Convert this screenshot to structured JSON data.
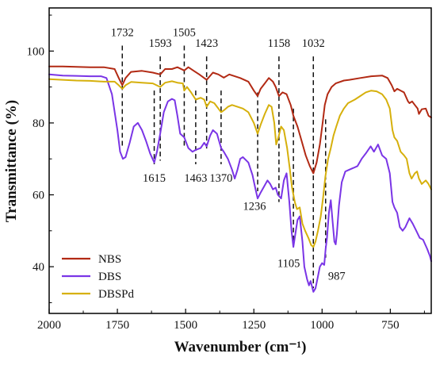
{
  "chart_data": {
    "type": "line",
    "title": "",
    "xlabel": "Wavenumber (cm⁻¹)",
    "ylabel": "Transmittance (%)",
    "xlim": [
      2000,
      600
    ],
    "ylim": [
      27,
      112
    ],
    "x_reversed": true,
    "x_ticks": [
      2000,
      1750,
      1500,
      1250,
      1000,
      750
    ],
    "x_tick_labels": [
      "2000",
      "1750",
      "1500",
      "1250",
      "1000",
      "750"
    ],
    "y_ticks": [
      40,
      60,
      80,
      100
    ],
    "y_tick_labels": [
      "40",
      "60",
      "80",
      "100"
    ],
    "legend": {
      "position": "bottom-left"
    },
    "colors": {
      "NBS": "#b22a14",
      "DBS": "#7a35e6",
      "DBSPd": "#d6b00c"
    },
    "series": [
      {
        "name": "NBS",
        "color": "#b22a14",
        "points": [
          [
            2000,
            95.7
          ],
          [
            1950,
            95.7
          ],
          [
            1900,
            95.6
          ],
          [
            1850,
            95.5
          ],
          [
            1800,
            95.5
          ],
          [
            1760,
            95
          ],
          [
            1745,
            92.5
          ],
          [
            1732,
            90.5
          ],
          [
            1720,
            92.5
          ],
          [
            1700,
            94.2
          ],
          [
            1660,
            94.5
          ],
          [
            1620,
            94
          ],
          [
            1593,
            93.5
          ],
          [
            1575,
            95
          ],
          [
            1550,
            95
          ],
          [
            1530,
            95.5
          ],
          [
            1505,
            94.6
          ],
          [
            1490,
            95.5
          ],
          [
            1470,
            94.5
          ],
          [
            1450,
            93.5
          ],
          [
            1423,
            92
          ],
          [
            1400,
            94
          ],
          [
            1380,
            93.5
          ],
          [
            1360,
            92.6
          ],
          [
            1340,
            93.5
          ],
          [
            1300,
            92.5
          ],
          [
            1270,
            91.5
          ],
          [
            1250,
            89
          ],
          [
            1236,
            87.5
          ],
          [
            1225,
            89.5
          ],
          [
            1210,
            91
          ],
          [
            1195,
            92.5
          ],
          [
            1180,
            91.5
          ],
          [
            1170,
            90
          ],
          [
            1158,
            87.5
          ],
          [
            1145,
            88.5
          ],
          [
            1130,
            88
          ],
          [
            1115,
            85
          ],
          [
            1105,
            82
          ],
          [
            1090,
            79
          ],
          [
            1075,
            75
          ],
          [
            1060,
            71
          ],
          [
            1045,
            68
          ],
          [
            1032,
            66
          ],
          [
            1020,
            69
          ],
          [
            1008,
            74
          ],
          [
            998,
            80
          ],
          [
            990,
            85
          ],
          [
            980,
            88
          ],
          [
            965,
            90
          ],
          [
            950,
            91
          ],
          [
            920,
            91.8
          ],
          [
            900,
            92
          ],
          [
            860,
            92.5
          ],
          [
            820,
            93
          ],
          [
            780,
            93.2
          ],
          [
            760,
            92.5
          ],
          [
            745,
            90.5
          ],
          [
            735,
            88.8
          ],
          [
            725,
            89.5
          ],
          [
            700,
            88.5
          ],
          [
            685,
            86
          ],
          [
            680,
            85.5
          ],
          [
            670,
            86
          ],
          [
            660,
            85
          ],
          [
            650,
            84
          ],
          [
            645,
            82.5
          ],
          [
            635,
            83.8
          ],
          [
            620,
            84
          ],
          [
            610,
            82
          ],
          [
            600,
            81.5
          ]
        ]
      },
      {
        "name": "DBS",
        "color": "#7a35e6",
        "points": [
          [
            2000,
            93.5
          ],
          [
            1950,
            93.2
          ],
          [
            1900,
            93.1
          ],
          [
            1850,
            93
          ],
          [
            1810,
            93
          ],
          [
            1790,
            92.5
          ],
          [
            1770,
            88
          ],
          [
            1750,
            78
          ],
          [
            1740,
            72
          ],
          [
            1730,
            70
          ],
          [
            1720,
            70.5
          ],
          [
            1705,
            74.5
          ],
          [
            1690,
            79
          ],
          [
            1675,
            80
          ],
          [
            1660,
            78
          ],
          [
            1645,
            75
          ],
          [
            1630,
            71.5
          ],
          [
            1615,
            69
          ],
          [
            1605,
            72
          ],
          [
            1593,
            77
          ],
          [
            1580,
            83
          ],
          [
            1565,
            86
          ],
          [
            1550,
            86.7
          ],
          [
            1540,
            86.3
          ],
          [
            1530,
            82
          ],
          [
            1520,
            77
          ],
          [
            1505,
            76
          ],
          [
            1490,
            73
          ],
          [
            1475,
            72
          ],
          [
            1463,
            72.5
          ],
          [
            1445,
            73
          ],
          [
            1432,
            74.5
          ],
          [
            1423,
            73.5
          ],
          [
            1410,
            76.5
          ],
          [
            1400,
            78
          ],
          [
            1385,
            77
          ],
          [
            1370,
            73
          ],
          [
            1360,
            72
          ],
          [
            1345,
            70
          ],
          [
            1330,
            67
          ],
          [
            1320,
            64.5
          ],
          [
            1310,
            67
          ],
          [
            1300,
            70
          ],
          [
            1290,
            70.5
          ],
          [
            1270,
            69
          ],
          [
            1255,
            65.5
          ],
          [
            1245,
            62
          ],
          [
            1236,
            59
          ],
          [
            1226,
            60.5
          ],
          [
            1215,
            62
          ],
          [
            1200,
            64
          ],
          [
            1190,
            63
          ],
          [
            1180,
            61.5
          ],
          [
            1170,
            62
          ],
          [
            1162,
            60
          ],
          [
            1150,
            59
          ],
          [
            1140,
            64
          ],
          [
            1130,
            66
          ],
          [
            1120,
            58
          ],
          [
            1112,
            50
          ],
          [
            1105,
            45.5
          ],
          [
            1098,
            49
          ],
          [
            1090,
            53
          ],
          [
            1082,
            54
          ],
          [
            1072,
            47
          ],
          [
            1065,
            40
          ],
          [
            1055,
            36.5
          ],
          [
            1048,
            34.8
          ],
          [
            1042,
            36
          ],
          [
            1032,
            33
          ],
          [
            1024,
            34
          ],
          [
            1016,
            37
          ],
          [
            1008,
            40
          ],
          [
            1000,
            41
          ],
          [
            992,
            40.5
          ],
          [
            987,
            45
          ],
          [
            982,
            48
          ],
          [
            975,
            55
          ],
          [
            968,
            58.5
          ],
          [
            962,
            53
          ],
          [
            955,
            47
          ],
          [
            950,
            46.2
          ],
          [
            946,
            49
          ],
          [
            938,
            57
          ],
          [
            928,
            63.5
          ],
          [
            915,
            66.5
          ],
          [
            900,
            67
          ],
          [
            885,
            67.5
          ],
          [
            870,
            68
          ],
          [
            855,
            70
          ],
          [
            840,
            71.5
          ],
          [
            822,
            73.5
          ],
          [
            810,
            72
          ],
          [
            795,
            74
          ],
          [
            780,
            71
          ],
          [
            765,
            70
          ],
          [
            752,
            66
          ],
          [
            742,
            58
          ],
          [
            735,
            56.5
          ],
          [
            725,
            55
          ],
          [
            715,
            51
          ],
          [
            705,
            50
          ],
          [
            695,
            51
          ],
          [
            680,
            53.5
          ],
          [
            668,
            52
          ],
          [
            655,
            50
          ],
          [
            642,
            48
          ],
          [
            630,
            47.5
          ],
          [
            615,
            45
          ],
          [
            605,
            43
          ],
          [
            600,
            41.5
          ]
        ]
      },
      {
        "name": "DBSPd",
        "color": "#d6b00c",
        "points": [
          [
            2000,
            92.2
          ],
          [
            1950,
            92
          ],
          [
            1900,
            91.8
          ],
          [
            1850,
            91.7
          ],
          [
            1800,
            91.5
          ],
          [
            1760,
            91.5
          ],
          [
            1745,
            90.5
          ],
          [
            1732,
            89.5
          ],
          [
            1720,
            90.5
          ],
          [
            1700,
            91.4
          ],
          [
            1660,
            91.2
          ],
          [
            1620,
            91
          ],
          [
            1593,
            90
          ],
          [
            1575,
            91.2
          ],
          [
            1550,
            91.6
          ],
          [
            1530,
            91.2
          ],
          [
            1510,
            91
          ],
          [
            1505,
            89
          ],
          [
            1495,
            90
          ],
          [
            1480,
            88.5
          ],
          [
            1463,
            86.5
          ],
          [
            1445,
            87
          ],
          [
            1432,
            86.5
          ],
          [
            1423,
            84.5
          ],
          [
            1410,
            86
          ],
          [
            1395,
            85.5
          ],
          [
            1380,
            84
          ],
          [
            1370,
            83
          ],
          [
            1360,
            83.5
          ],
          [
            1345,
            84.5
          ],
          [
            1330,
            85
          ],
          [
            1310,
            84.5
          ],
          [
            1290,
            84
          ],
          [
            1270,
            83
          ],
          [
            1250,
            80
          ],
          [
            1236,
            77
          ],
          [
            1225,
            79.5
          ],
          [
            1210,
            82.5
          ],
          [
            1195,
            85
          ],
          [
            1185,
            84.5
          ],
          [
            1175,
            80
          ],
          [
            1168,
            74
          ],
          [
            1160,
            76
          ],
          [
            1150,
            79
          ],
          [
            1140,
            78
          ],
          [
            1128,
            73
          ],
          [
            1118,
            67
          ],
          [
            1110,
            62
          ],
          [
            1100,
            58
          ],
          [
            1092,
            56
          ],
          [
            1082,
            56.5
          ],
          [
            1072,
            52
          ],
          [
            1062,
            50
          ],
          [
            1050,
            48
          ],
          [
            1040,
            46
          ],
          [
            1032,
            45.5
          ],
          [
            1024,
            47
          ],
          [
            1015,
            50
          ],
          [
            1005,
            54
          ],
          [
            995,
            60
          ],
          [
            988,
            65
          ],
          [
            978,
            70
          ],
          [
            968,
            73
          ],
          [
            958,
            76.5
          ],
          [
            948,
            79
          ],
          [
            935,
            82
          ],
          [
            920,
            84
          ],
          [
            905,
            85.5
          ],
          [
            880,
            86.5
          ],
          [
            860,
            87.5
          ],
          [
            840,
            88.5
          ],
          [
            820,
            89
          ],
          [
            800,
            88.8
          ],
          [
            780,
            88
          ],
          [
            765,
            86.5
          ],
          [
            752,
            84
          ],
          [
            742,
            78
          ],
          [
            735,
            76
          ],
          [
            725,
            75
          ],
          [
            712,
            72
          ],
          [
            700,
            71
          ],
          [
            690,
            70
          ],
          [
            680,
            66
          ],
          [
            672,
            64.5
          ],
          [
            660,
            66
          ],
          [
            652,
            66.5
          ],
          [
            645,
            64.5
          ],
          [
            635,
            63
          ],
          [
            620,
            64
          ],
          [
            610,
            63
          ],
          [
            600,
            61.5
          ]
        ]
      }
    ],
    "peak_markers": [
      {
        "label": "1732",
        "x": 1732,
        "label_pos": "top"
      },
      {
        "label": "1593",
        "x": 1593,
        "label_pos": "top"
      },
      {
        "label": "1505",
        "x": 1505,
        "label_pos": "top"
      },
      {
        "label": "1423",
        "x": 1423,
        "label_pos": "top"
      },
      {
        "label": "1158",
        "x": 1158,
        "label_pos": "top"
      },
      {
        "label": "1032",
        "x": 1032,
        "label_pos": "top"
      },
      {
        "label": "1615",
        "x": 1615,
        "label_pos": "bottom"
      },
      {
        "label": "1463",
        "x": 1463,
        "label_pos": "bottom"
      },
      {
        "label": "1370",
        "x": 1370,
        "label_pos": "bottom"
      },
      {
        "label": "1236",
        "x": 1236,
        "label_pos": "bottom"
      },
      {
        "label": "1105",
        "x": 1105,
        "label_pos": "bottom"
      },
      {
        "label": "987",
        "x": 987,
        "label_pos": "bottom"
      }
    ]
  }
}
